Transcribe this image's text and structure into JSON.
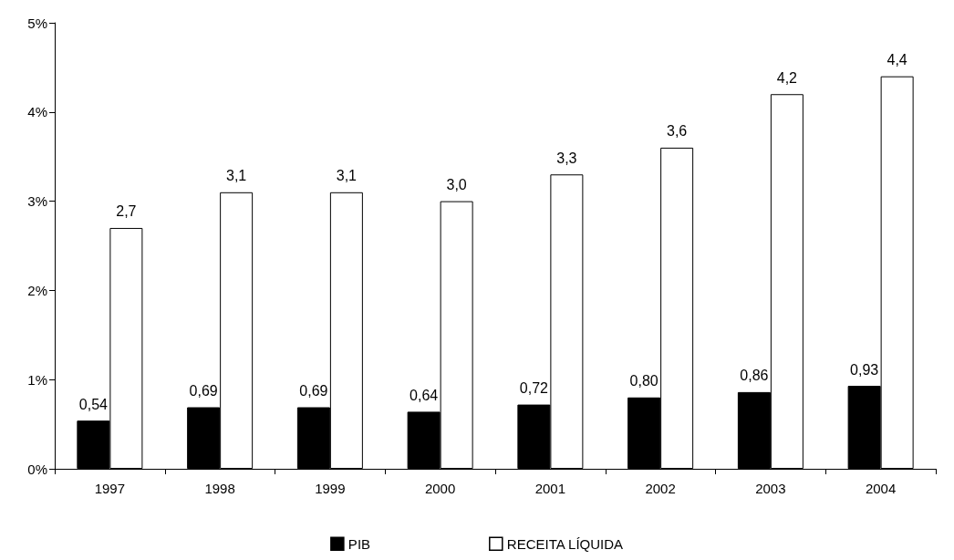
{
  "chart_data": {
    "type": "bar",
    "categories": [
      "1997",
      "1998",
      "1999",
      "2000",
      "2001",
      "2002",
      "2003",
      "2004"
    ],
    "series": [
      {
        "name": "PIB",
        "color": "#000000",
        "values": [
          0.54,
          0.69,
          0.69,
          0.64,
          0.72,
          0.8,
          0.86,
          0.93
        ],
        "value_labels": [
          "0,54",
          "0,69",
          "0,69",
          "0,64",
          "0,72",
          "0,80",
          "0,86",
          "0,93"
        ]
      },
      {
        "name": "RECEITA LÍQUIDA",
        "color": "#ffffff",
        "values": [
          2.7,
          3.1,
          3.1,
          3.0,
          3.3,
          3.6,
          4.2,
          4.4
        ],
        "value_labels": [
          "2,7",
          "3,1",
          "3,1",
          "3,0",
          "3,3",
          "3,6",
          "4,2",
          "4,4"
        ]
      }
    ],
    "ylim": [
      0,
      5
    ],
    "yticks": [
      {
        "value": 0,
        "label": "0%"
      },
      {
        "value": 1,
        "label": "1%"
      },
      {
        "value": 2,
        "label": "2%"
      },
      {
        "value": 3,
        "label": "3%"
      },
      {
        "value": 4,
        "label": "4%"
      },
      {
        "value": 5,
        "label": "5%"
      }
    ],
    "legend": "bottom"
  }
}
